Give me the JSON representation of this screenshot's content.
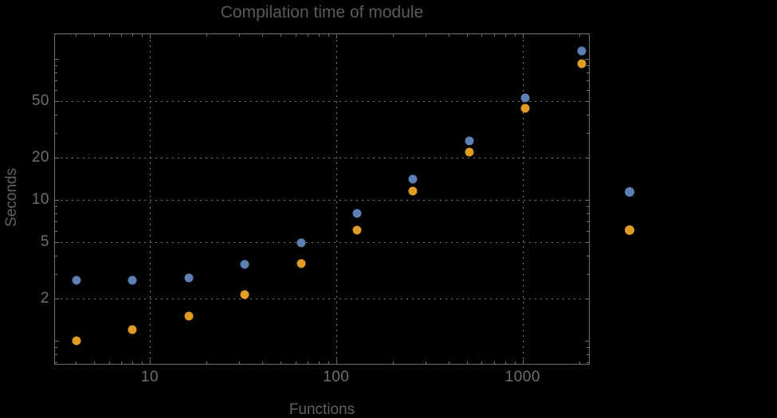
{
  "page": {
    "background": "#000000"
  },
  "colors": {
    "frame": "#6f6f6f",
    "grid": "#7f7f7f",
    "title_text": "#5a5a5a",
    "axis_label_text": "#616161",
    "tick_label_text": "#6f6f6f",
    "series1": "#5E81B5",
    "series2": "#E19C24"
  },
  "chart_data": {
    "type": "scatter",
    "title": "Compilation time of module",
    "xlabel": "Functions",
    "ylabel": "Seconds",
    "xscale": "log",
    "yscale": "log",
    "grid": true,
    "grid_style": "dotted",
    "xlim": [
      3.07,
      2290
    ],
    "ylim": [
      0.672,
      150.7
    ],
    "xticks": [
      10,
      100,
      1000
    ],
    "xtick_labels": [
      "10",
      "100",
      "1000"
    ],
    "yticks": [
      2,
      5,
      10,
      20,
      50
    ],
    "ytick_labels": [
      "2",
      "5",
      "10",
      "20",
      "50"
    ],
    "categories": [
      4,
      8,
      16,
      32,
      64,
      128,
      256,
      512,
      1024,
      2048
    ],
    "series": [
      {
        "name": "series-1",
        "color": "#5E81B5",
        "values": [
          2.7,
          2.7,
          2.8,
          3.5,
          5.0,
          8.1,
          14.1,
          26.4,
          53,
          115
        ]
      },
      {
        "name": "series-2",
        "color": "#E19C24",
        "values": [
          1.0,
          1.2,
          1.5,
          2.15,
          3.55,
          6.1,
          11.6,
          22,
          45,
          93
        ]
      }
    ],
    "legend": {
      "position": "right-outside",
      "items": [
        {
          "series": "series-1",
          "color": "#5E81B5",
          "label": ""
        },
        {
          "series": "series-2",
          "color": "#E19C24",
          "label": ""
        }
      ]
    }
  }
}
